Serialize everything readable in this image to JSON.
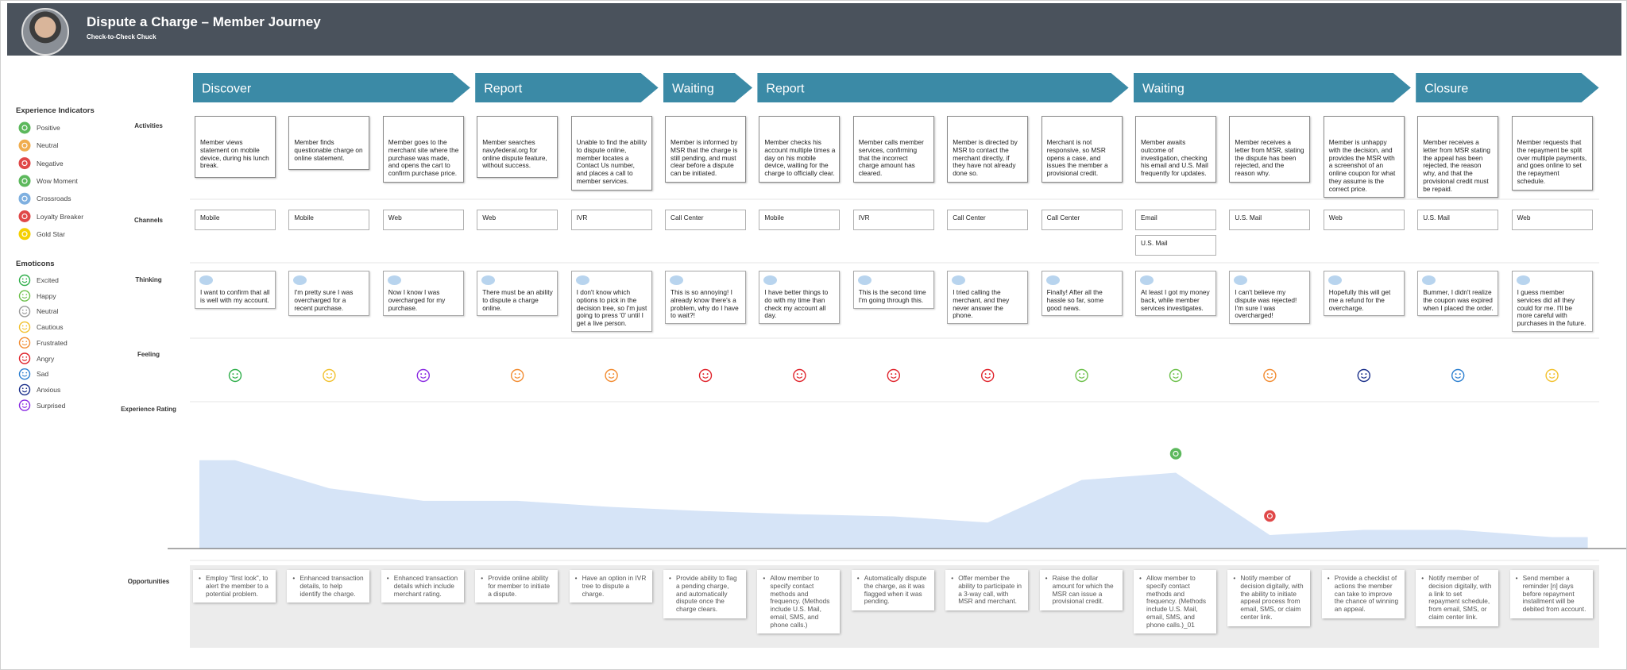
{
  "header": {
    "title": "Dispute a Charge – Member Journey",
    "subtitle": "Check-to-Check Chuck"
  },
  "legend": {
    "indicators_title": "Experience Indicators",
    "indicators": [
      {
        "name": "Positive",
        "color": "#5cb85c"
      },
      {
        "name": "Neutral",
        "color": "#f0ad4e"
      },
      {
        "name": "Negative",
        "color": "#e04848"
      },
      {
        "name": "Wow Moment",
        "color": "#5cb85c"
      },
      {
        "name": "Crossroads",
        "color": "#7fb0e0"
      },
      {
        "name": "Loyalty Breaker",
        "color": "#e04848"
      },
      {
        "name": "Gold Star",
        "color": "#f5d000"
      }
    ],
    "emoticons_title": "Emoticons",
    "emoticons": [
      {
        "name": "Excited",
        "color": "#2fae4a"
      },
      {
        "name": "Happy",
        "color": "#6cc04a"
      },
      {
        "name": "Neutral",
        "color": "#9a9a9a"
      },
      {
        "name": "Cautious",
        "color": "#f2c12e"
      },
      {
        "name": "Frustrated",
        "color": "#f28b30"
      },
      {
        "name": "Angry",
        "color": "#e0242c"
      },
      {
        "name": "Sad",
        "color": "#2b7fd0"
      },
      {
        "name": "Anxious",
        "color": "#1a2f8a"
      },
      {
        "name": "Surprised",
        "color": "#8a2be2"
      }
    ]
  },
  "row_labels": {
    "activities": "Activities",
    "channels": "Channels",
    "thinking": "Thinking",
    "feeling": "Feeling",
    "experience_rating": "Experience Rating",
    "opportunities": "Opportunities"
  },
  "experience_rating": {
    "ylim": [
      0,
      12
    ]
  },
  "stages": [
    {
      "label": "Discover",
      "steps": [
        {
          "activity": "Member views statement on mobile device, during his lunch break.",
          "channels": [
            "Mobile"
          ],
          "thinking": "I want to confirm that all is well with my account.",
          "feeling": "Excited",
          "rating": 8.5,
          "opportunity": "Employ \"first look\", to alert the member to a potential problem."
        },
        {
          "activity": "Member finds questionable charge on online statement.",
          "channels": [
            "Mobile"
          ],
          "thinking": "I'm pretty sure I was overcharged for a recent purchase.",
          "feeling": "Cautious",
          "rating": 5.8,
          "opportunity": "Enhanced transaction details, to help identify the charge."
        },
        {
          "activity": "Member goes to the merchant site where the purchase was made, and opens the cart to confirm purchase price.",
          "channels": [
            "Web"
          ],
          "thinking": "Now I know I was overcharged for my purchase.",
          "feeling": "Surprised",
          "rating": 4.6,
          "opportunity": "Enhanced transaction details which include merchant rating."
        }
      ]
    },
    {
      "label": "Report",
      "steps": [
        {
          "activity": "Member searches navyfederal.org for online dispute feature, without success.",
          "channels": [
            "Web"
          ],
          "thinking": "There must be an ability to dispute a charge online.",
          "feeling": "Frustrated",
          "rating": 4.6,
          "opportunity": "Provide online ability for member to initiate a dispute."
        },
        {
          "activity": "Unable to find the ability to dispute online, member locates a Contact Us number, and places a call to member services.",
          "channels": [
            "IVR"
          ],
          "thinking": "I don't know which options to pick in the decision tree, so I'm just going to press '0' until I get a live person.",
          "feeling": "Frustrated",
          "rating": 4.0,
          "opportunity": "Have an option in IVR tree to dispute a charge."
        }
      ]
    },
    {
      "label": "Waiting",
      "steps": [
        {
          "activity": "Member is informed by MSR that the charge is still pending, and must clear before a dispute can be initiated.",
          "channels": [
            "Call Center"
          ],
          "thinking": "This is so annoying!  I already know there's a problem, why do I have to wait?!",
          "feeling": "Angry",
          "rating": 3.6,
          "opportunity": "Provide ability to flag a pending charge, and automatically dispute once the charge clears."
        }
      ]
    },
    {
      "label": "Report",
      "steps": [
        {
          "activity": "Member checks his account multiple times a day on his mobile device, waiting for the charge to officially clear.",
          "channels": [
            "Mobile"
          ],
          "thinking": "I have better things to do with my time than check my account all day.",
          "feeling": "Angry",
          "rating": 3.3,
          "opportunity": "Allow member to specify contact methods and frequency. (Methods include U.S. Mail, email, SMS, and phone calls.)"
        },
        {
          "activity": "Member calls member services, confirming that the incorrect charge amount has cleared.",
          "channels": [
            "IVR"
          ],
          "thinking": "This is the second time I'm going through this.",
          "feeling": "Angry",
          "rating": 3.1,
          "opportunity": "Automatically dispute the charge, as it was flagged when it was pending."
        },
        {
          "activity": "Member is directed by MSR to contact the merchant directly, if they have not already done so.",
          "channels": [
            "Call Center"
          ],
          "thinking": "I tried calling the merchant, and they never answer the phone.",
          "feeling": "Angry",
          "rating": 2.5,
          "opportunity": "Offer member the ability to participate in a 3-way call, with MSR and merchant."
        },
        {
          "activity": "Merchant is not responsive, so MSR opens a case, and issues the member a provisional credit.",
          "channels": [
            "Call Center"
          ],
          "thinking": "Finally! After all the hassle so far, some good news.",
          "feeling": "Happy",
          "rating": 6.6,
          "opportunity": "Raise the dollar amount for which the MSR can issue a provisional credit."
        }
      ]
    },
    {
      "label": "Waiting",
      "steps": [
        {
          "activity": "Member awaits outcome of investigation, checking his email and U.S. Mail frequently for updates.",
          "channels": [
            "Email",
            "U.S. Mail"
          ],
          "thinking": "At least I got my money back, while member services investigates.",
          "feeling": "Happy",
          "rating": 7.3,
          "indicator": "Wow Moment",
          "opportunity": "Allow member to specify contact methods and frequency. (Methods include U.S. Mail, email, SMS, and phone calls.)_01"
        },
        {
          "activity": "Member receives a letter from MSR, stating the dispute has been rejected, and the reason why.",
          "channels": [
            "U.S. Mail"
          ],
          "thinking": "I can't believe my dispute was rejected!  I'm sure I was overcharged!",
          "feeling": "Frustrated",
          "rating": 1.3,
          "indicator": "Loyalty Breaker",
          "opportunity": "Notify member of decision digitally, with the ability to initiate appeal process from email, SMS, or claim center link."
        },
        {
          "activity": "Member is unhappy with the decision, and provides the MSR with a screenshot of an online coupon for what they assume is the correct price.",
          "channels": [
            "Web"
          ],
          "thinking": "Hopefully this will get me a refund for the overcharge.",
          "feeling": "Anxious",
          "rating": 1.8,
          "opportunity": "Provide a checklist of actions the member can take to improve the chance of winning an appeal."
        }
      ]
    },
    {
      "label": "Closure",
      "steps": [
        {
          "activity": "Member receives a letter from MSR stating the appeal has been rejected, the reason why, and that the provisional credit must be repaid.",
          "channels": [
            "U.S. Mail"
          ],
          "thinking": "Bummer, I didn't realize the coupon was expired when I placed the order.",
          "feeling": "Sad",
          "rating": 1.8,
          "opportunity": "Notify member of decision digitally, with a link to set repayment schedule, from email, SMS, or claim center link."
        },
        {
          "activity": "Member requests that the repayment be split over multiple payments, and goes online to set the repayment schedule.",
          "channels": [
            "Web"
          ],
          "thinking": "I guess member services did all they could for me. I'll be more careful with purchases in the future.",
          "feeling": "Cautious",
          "rating": 1.1,
          "opportunity": "Send member a reminder [n] days before repayment installment will be debited from account."
        }
      ]
    }
  ]
}
